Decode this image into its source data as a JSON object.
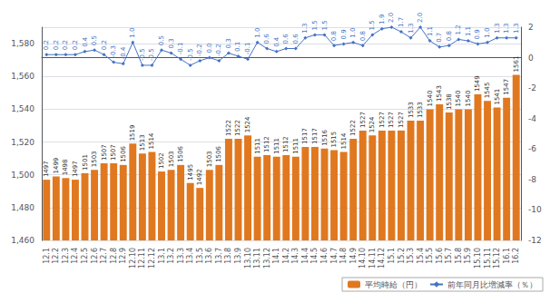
{
  "chart_data": {
    "type": "bar",
    "categories": [
      "12.1",
      "12.2",
      "12.3",
      "12.4",
      "12.5",
      "12.6",
      "12.7",
      "12.8",
      "12.9",
      "12.10",
      "12.11",
      "12.12",
      "13.1",
      "13.2",
      "13.3",
      "13.4",
      "13.5",
      "13.6",
      "13.7",
      "13.8",
      "13.9",
      "13.10",
      "13.11",
      "13.12",
      "14.1",
      "14.2",
      "14.3",
      "14.4",
      "14.5",
      "14.6",
      "14.7",
      "14.8",
      "14.9",
      "14.10",
      "14.11",
      "14.12",
      "15.1",
      "15.2",
      "15.3",
      "15.4",
      "15.5",
      "15.6",
      "15.7",
      "15.8",
      "15.9",
      "15.10",
      "15.11",
      "15.12",
      "16.1",
      "16.2"
    ],
    "series": [
      {
        "name": "平均時給（円）",
        "type": "bar",
        "color": "#E07820",
        "values": [
          1497,
          1499,
          1498,
          1497,
          1501,
          1503,
          1507,
          1507,
          1506,
          1519,
          1513,
          1514,
          1502,
          1503,
          1506,
          1495,
          1492,
          1503,
          1506,
          1522,
          1522,
          1524,
          1511,
          1512,
          1511,
          1512,
          1511,
          1517,
          1517,
          1516,
          1515,
          1514,
          1522,
          1527,
          1524,
          1527,
          1527,
          1527,
          1533,
          1533,
          1540,
          1543,
          1538,
          1540,
          1540,
          1549,
          1545,
          1541,
          1547,
          1561
        ]
      },
      {
        "name": "前年同月比増減率（％）",
        "type": "line",
        "color": "#4472C4",
        "axis": "y2",
        "marker": "diamond",
        "values": [
          0.2,
          0.2,
          0.2,
          0.2,
          0.4,
          0.5,
          0.2,
          -0.3,
          -0.4,
          1.0,
          -0.5,
          -0.5,
          0.5,
          0.3,
          -0.1,
          -0.5,
          -0.2,
          0.0,
          -0.2,
          0.3,
          0.1,
          -0.1,
          1.0,
          0.6,
          0.4,
          0.6,
          0.6,
          1.3,
          1.5,
          1.5,
          0.8,
          0.9,
          1.0,
          0.8,
          1.5,
          1.9,
          2.0,
          1.7,
          1.3,
          2.0,
          1.1,
          0.7,
          0.8,
          1.2,
          1.1,
          0.9,
          1.0,
          1.3,
          1.3,
          1.3
        ],
        "value_labels": [
          "0.2",
          "0.2",
          "0.2",
          "0.2",
          "0.4",
          "0.5",
          "0.2",
          "-0.3",
          "-0.4",
          "1.0",
          "-0.5",
          "-0.5",
          "0.5",
          "0.3",
          "-0.1",
          "-0.5",
          "-0.2",
          "0.0",
          "-0.2",
          "0.3",
          "0.1",
          "-0.1",
          "1.0",
          "0.6",
          "0.4",
          "0.6",
          "0.6",
          "1.3",
          "1.5",
          "1.5",
          "0.8",
          "0.9",
          "1.0",
          "0.8",
          "1.5",
          "1.9",
          "2.0",
          "1.7",
          "1.3",
          "2.0",
          "1.1",
          "0.7",
          "0.8",
          "1.2",
          "1.1",
          "0.9",
          "1.0",
          "1.3",
          "1.3",
          "1.3"
        ]
      }
    ],
    "ylim": [
      1460,
      1590
    ],
    "yticks": [
      {
        "value": 1460,
        "label": "1,460"
      },
      {
        "value": 1480,
        "label": "1,480"
      },
      {
        "value": 1500,
        "label": "1,500"
      },
      {
        "value": 1520,
        "label": "1,520"
      },
      {
        "value": 1540,
        "label": "1,540"
      },
      {
        "value": 1560,
        "label": "1,560"
      },
      {
        "value": 1580,
        "label": "1,580"
      }
    ],
    "y2lim": [
      -12,
      2
    ],
    "y2ticks": [
      -12,
      -10,
      -8,
      -6,
      -4,
      -2,
      0,
      2
    ],
    "grid": true,
    "legend": "lower right",
    "data_labels": true
  }
}
